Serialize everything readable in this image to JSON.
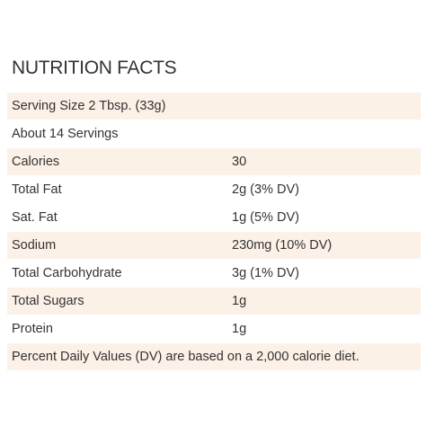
{
  "title": "NUTRITION FACTS",
  "serving_size": "Serving Size 2 Tbsp. (33g)",
  "servings": "About 14 Servings",
  "rows": [
    {
      "label": "Calories",
      "value": "30"
    },
    {
      "label": "Total Fat",
      "value": "2g (3% DV)"
    },
    {
      "label": "Sat. Fat",
      "value": "1g (5% DV)"
    },
    {
      "label": "Sodium",
      "value": "230mg (10% DV)"
    },
    {
      "label": "Total Carbohydrate",
      "value": "3g (1% DV)"
    },
    {
      "label": "Total Sugars",
      "value": "1g"
    },
    {
      "label": "Protein",
      "value": "1g"
    }
  ],
  "footnote": "Percent Daily Values (DV) are based on a 2,000 calorie diet.",
  "colors": {
    "shaded_row": "#fcf1e6",
    "text": "#333333"
  }
}
